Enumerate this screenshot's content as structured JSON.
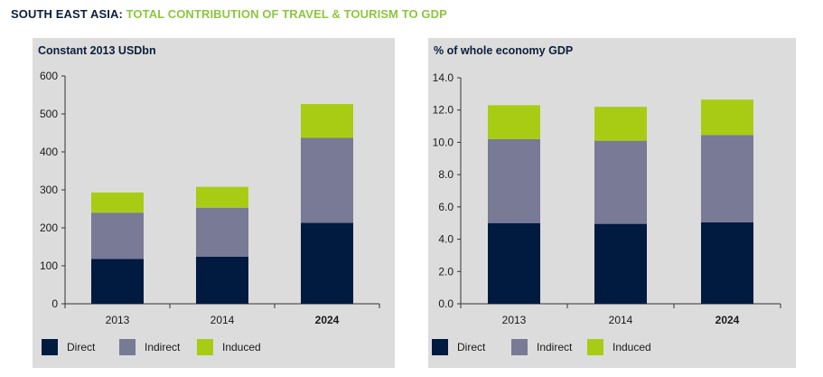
{
  "title": {
    "region": "SOUTH EAST ASIA:",
    "subject": "TOTAL CONTRIBUTION OF TRAVEL & TOURISM TO GDP"
  },
  "colors": {
    "direct": "#001a40",
    "indirect": "#787a96",
    "induced": "#a8cc14",
    "panel_background": "#dcdcdc",
    "title_navy": "#0b1f3a",
    "title_green": "#8cc63f"
  },
  "legend": [
    {
      "key": "direct",
      "label": "Direct"
    },
    {
      "key": "indirect",
      "label": "Indirect"
    },
    {
      "key": "induced",
      "label": "Induced"
    }
  ],
  "chart_data": [
    {
      "type": "bar",
      "stacked": true,
      "title": "Constant 2013 USDbn",
      "categories": [
        "2013",
        "2014",
        "2024"
      ],
      "bold_categories": [
        "2024"
      ],
      "series": [
        {
          "name": "Direct",
          "values": [
            118,
            124,
            213
          ]
        },
        {
          "name": "Indirect",
          "values": [
            122,
            129,
            224
          ]
        },
        {
          "name": "Induced",
          "values": [
            53,
            55,
            89
          ]
        }
      ],
      "ylim": [
        0,
        600
      ],
      "yticks": [
        "0",
        "100",
        "200",
        "300",
        "400",
        "500",
        "600"
      ],
      "grid": false,
      "legend_position": "bottom"
    },
    {
      "type": "bar",
      "stacked": true,
      "title": "% of whole economy GDP",
      "categories": [
        "2013",
        "2014",
        "2024"
      ],
      "bold_categories": [
        "2024"
      ],
      "series": [
        {
          "name": "Direct",
          "values": [
            5.0,
            4.95,
            5.05
          ]
        },
        {
          "name": "Indirect",
          "values": [
            5.2,
            5.15,
            5.4
          ]
        },
        {
          "name": "Induced",
          "values": [
            2.1,
            2.1,
            2.2
          ]
        }
      ],
      "ylim": [
        0,
        14
      ],
      "yticks": [
        "0.0",
        "2.0",
        "4.0",
        "6.0",
        "8.0",
        "10.0",
        "12.0",
        "14.0"
      ],
      "grid": false,
      "legend_position": "bottom"
    }
  ]
}
